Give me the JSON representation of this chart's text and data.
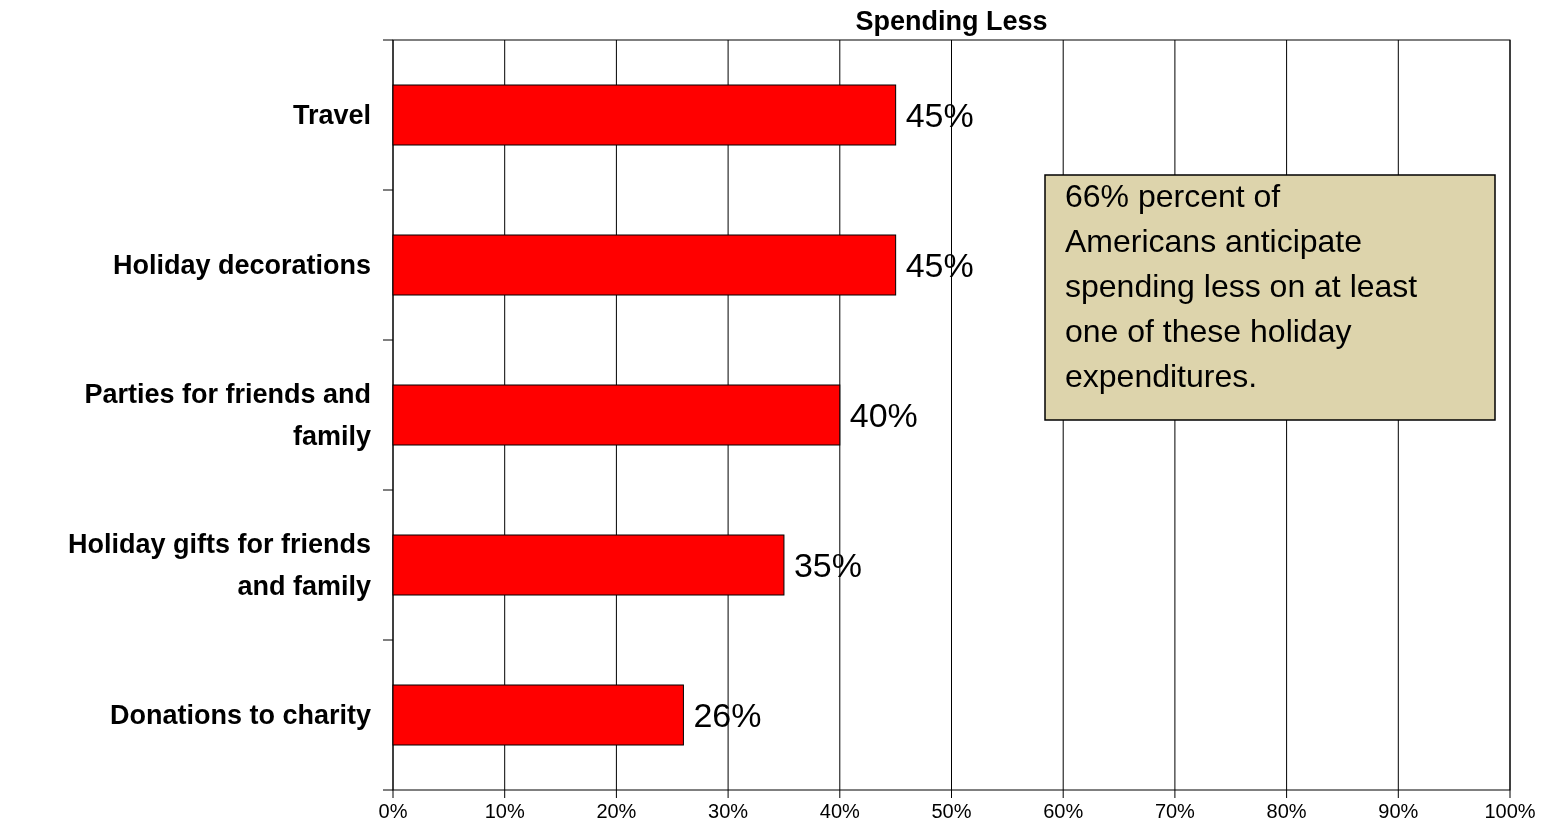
{
  "chart_data": {
    "type": "bar",
    "orientation": "horizontal",
    "title": "Spending Less",
    "categories": [
      "Travel",
      "Holiday decorations",
      "Parties for friends and family",
      "Holiday gifts for friends and family",
      "Donations to charity"
    ],
    "values": [
      45,
      45,
      40,
      35,
      26
    ],
    "value_labels": [
      "45%",
      "45%",
      "40%",
      "35%",
      "26%"
    ],
    "color": "#ff0000",
    "xlim": [
      0,
      100
    ],
    "xticks": [
      {
        "value": 0,
        "label": "0%"
      },
      {
        "value": 10,
        "label": "10%"
      },
      {
        "value": 20,
        "label": "20%"
      },
      {
        "value": 30,
        "label": "30%"
      },
      {
        "value": 40,
        "label": "40%"
      },
      {
        "value": 50,
        "label": "50%"
      },
      {
        "value": 60,
        "label": "60%"
      },
      {
        "value": 70,
        "label": "70%"
      },
      {
        "value": 80,
        "label": "80%"
      },
      {
        "value": 90,
        "label": "90%"
      },
      {
        "value": 100,
        "label": "100%"
      }
    ],
    "grid": "x",
    "annotations": [
      "66% percent of Americans anticipate spending less on at least one of these holiday expenditures."
    ]
  }
}
